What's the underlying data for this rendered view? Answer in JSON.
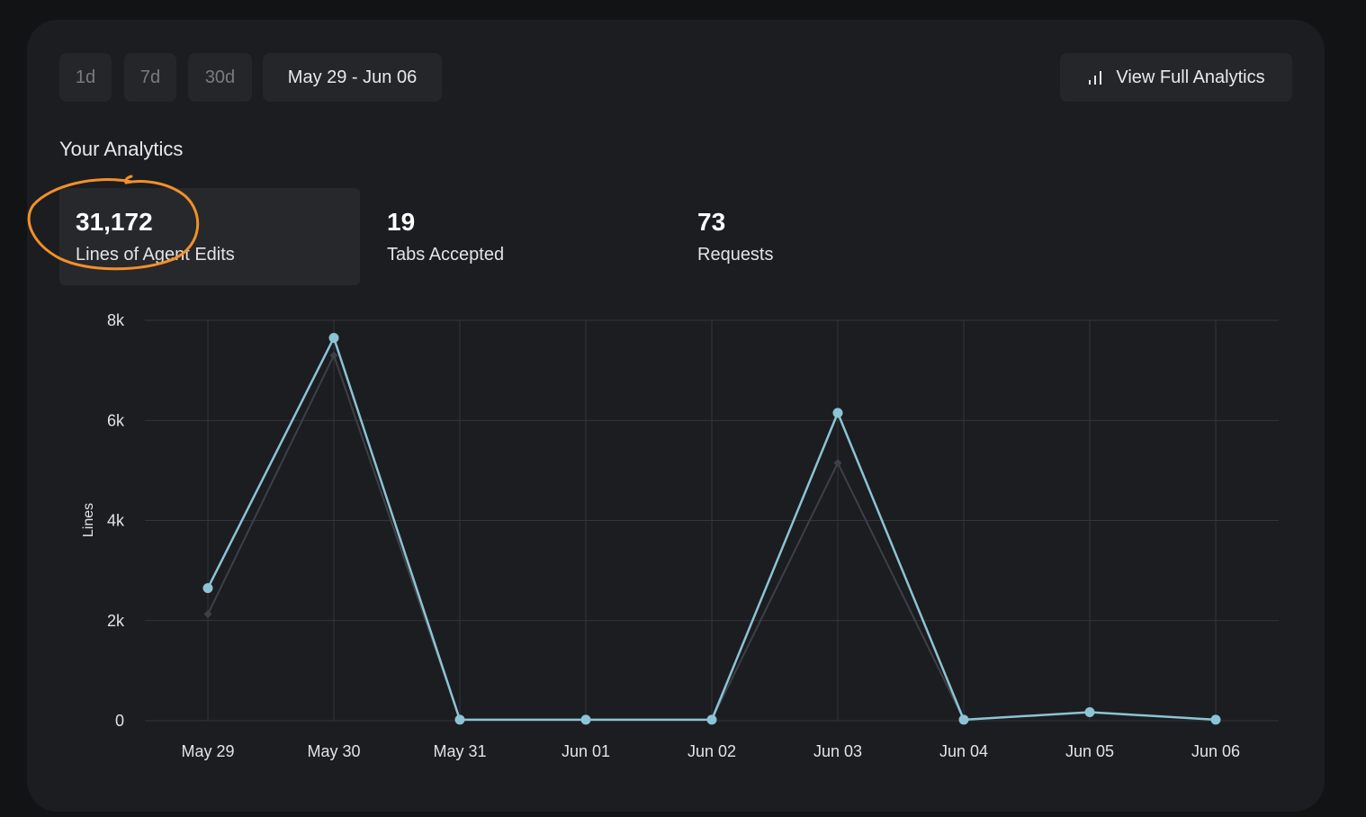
{
  "range_buttons": [
    {
      "label": "1d"
    },
    {
      "label": "7d"
    },
    {
      "label": "30d"
    },
    {
      "label": "May 29 - Jun 06"
    }
  ],
  "view_full_label": "View Full Analytics",
  "section_title": "Your Analytics",
  "stats": [
    {
      "value": "31,172",
      "label": "Lines of Agent Edits"
    },
    {
      "value": "19",
      "label": "Tabs Accepted"
    },
    {
      "value": "73",
      "label": "Requests"
    }
  ],
  "colors": {
    "accent": "#8cc3d5",
    "secondary": "#3e3f4a",
    "annotation": "#f2902a",
    "panel": "#1c1d20"
  },
  "chart_data": {
    "type": "line",
    "categories": [
      "May 29",
      "May 30",
      "May 31",
      "Jun 01",
      "Jun 02",
      "Jun 03",
      "Jun 04",
      "Jun 05",
      "Jun 06"
    ],
    "series": [
      {
        "values": [
          2650,
          7650,
          20,
          20,
          20,
          6150,
          20,
          170,
          20
        ],
        "color": "#8cc3d5",
        "marker": "circle"
      },
      {
        "values": [
          2130,
          7300,
          20,
          20,
          20,
          5150,
          20,
          170,
          20
        ],
        "color": "#3e3f4a",
        "marker": "diamond"
      }
    ],
    "ylabel": "Lines",
    "ylim": [
      0,
      8000
    ],
    "yticks": [
      {
        "value": 0,
        "label": "0"
      },
      {
        "value": 2000,
        "label": "2k"
      },
      {
        "value": 4000,
        "label": "4k"
      },
      {
        "value": 6000,
        "label": "6k"
      },
      {
        "value": 8000,
        "label": "8k"
      }
    ],
    "grid": true
  }
}
